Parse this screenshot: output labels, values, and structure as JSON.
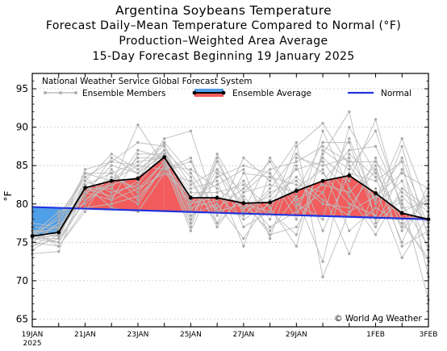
{
  "titles": {
    "line1": "Argentina Soybeans Temperature",
    "line2": "Forecast Daily–Mean Temperature Compared to Normal (°F)",
    "line3": "Production–Weighted Area Average",
    "line4": "15-Day Forecast Beginning 19 January 2025"
  },
  "legend": {
    "source": "National Weather Service Global Forecast System",
    "members": "Ensemble Members",
    "average": "Ensemble Average",
    "normal": "Normal"
  },
  "copyright": "© World Ag Weather",
  "colors": {
    "warm_fill": "#f25c5c",
    "cool_fill": "#4f9ee8",
    "normal_line": "#2233dd",
    "members": "#bdbdbd",
    "average": "#000000"
  },
  "chart_data": {
    "type": "line",
    "title": "Argentina Soybeans Temperature",
    "ylabel": "°F",
    "ylim": [
      64,
      97
    ],
    "yticks": [
      65,
      70,
      75,
      80,
      85,
      90,
      95
    ],
    "xlim": [
      0,
      15
    ],
    "grid": "dotted horizontal",
    "legend_position": "top",
    "xtick_labels": [
      {
        "x": 0,
        "label": "19JAN",
        "sub": "2025"
      },
      {
        "x": 2,
        "label": "21JAN"
      },
      {
        "x": 4,
        "label": "23JAN"
      },
      {
        "x": 6,
        "label": "25JAN"
      },
      {
        "x": 8,
        "label": "27JAN"
      },
      {
        "x": 10,
        "label": "29JAN"
      },
      {
        "x": 13,
        "label": "1FEB"
      },
      {
        "x": 15,
        "label": "3FEB"
      }
    ],
    "series": [
      {
        "name": "Ensemble Average",
        "x": [
          0,
          1,
          2,
          3,
          4,
          5,
          6,
          7,
          8,
          9,
          10,
          11,
          12,
          13,
          14,
          15
        ],
        "values": [
          75.8,
          76.3,
          82.1,
          83.0,
          83.3,
          86.1,
          80.8,
          80.8,
          80.1,
          80.2,
          81.7,
          83.0,
          83.7,
          81.4,
          78.8,
          78.0
        ]
      },
      {
        "name": "Normal",
        "x": [
          0,
          15
        ],
        "values": [
          79.6,
          78.0
        ]
      }
    ],
    "ensemble_members": [
      [
        75.5,
        76.0,
        84.5,
        85.5,
        88.0,
        87.5,
        82.5,
        84.5,
        81.5,
        84.5,
        85.5,
        87.5,
        85.5,
        85.5,
        81.5,
        79.0
      ],
      [
        75.0,
        74.5,
        79.5,
        80.0,
        81.0,
        84.5,
        86.0,
        77.5,
        81.0,
        77.0,
        79.0,
        81.5,
        88.5,
        80.0,
        83.0,
        74.0
      ],
      [
        76.0,
        77.0,
        83.0,
        86.5,
        84.5,
        87.0,
        78.5,
        80.0,
        75.5,
        80.5,
        83.5,
        80.5,
        78.5,
        86.0,
        76.5,
        81.0
      ],
      [
        75.5,
        75.0,
        81.5,
        82.5,
        90.3,
        85.0,
        80.0,
        83.5,
        85.0,
        84.0,
        78.0,
        89.5,
        82.0,
        77.0,
        84.5,
        76.0
      ],
      [
        76.5,
        76.5,
        82.0,
        81.0,
        83.0,
        88.5,
        89.5,
        79.0,
        80.0,
        76.5,
        81.0,
        72.5,
        86.5,
        83.5,
        75.0,
        82.5
      ],
      [
        74.5,
        75.5,
        80.5,
        83.5,
        82.0,
        85.5,
        77.0,
        86.0,
        78.5,
        82.0,
        86.5,
        84.0,
        80.0,
        78.5,
        87.5,
        75.5
      ],
      [
        76.0,
        78.0,
        84.0,
        84.0,
        85.5,
        86.0,
        81.5,
        81.5,
        82.5,
        79.5,
        74.5,
        87.0,
        84.5,
        89.5,
        79.5,
        80.0
      ],
      [
        73.5,
        73.8,
        82.5,
        79.5,
        79.0,
        84.0,
        83.0,
        77.5,
        84.0,
        83.5,
        82.5,
        81.5,
        73.5,
        82.0,
        73.0,
        78.5
      ],
      [
        77.0,
        76.8,
        81.0,
        86.0,
        84.0,
        87.8,
        79.0,
        84.5,
        77.0,
        79.0,
        87.5,
        90.5,
        85.0,
        80.5,
        86.0,
        77.0
      ],
      [
        75.0,
        77.5,
        83.5,
        80.5,
        86.5,
        86.5,
        80.5,
        79.5,
        82.0,
        85.5,
        80.0,
        78.0,
        90.0,
        84.0,
        78.0,
        72.5
      ],
      [
        76.5,
        74.5,
        79.0,
        84.5,
        80.5,
        85.0,
        84.5,
        82.0,
        79.5,
        81.0,
        84.5,
        85.5,
        81.0,
        76.0,
        82.0,
        79.5
      ],
      [
        74.0,
        76.0,
        82.0,
        82.0,
        87.0,
        86.0,
        77.5,
        86.5,
        80.5,
        76.0,
        77.0,
        83.0,
        87.0,
        87.5,
        80.0,
        74.5
      ],
      [
        76.0,
        79.0,
        80.0,
        83.0,
        85.0,
        84.5,
        85.5,
        78.5,
        86.0,
        83.0,
        88.0,
        70.5,
        79.0,
        81.0,
        84.0,
        82.0
      ],
      [
        75.5,
        75.5,
        83.0,
        81.5,
        82.5,
        87.0,
        80.0,
        81.0,
        78.0,
        80.0,
        82.0,
        84.5,
        76.5,
        79.5,
        77.5,
        73.0
      ],
      [
        77.5,
        77.0,
        81.5,
        85.0,
        84.0,
        86.5,
        82.0,
        83.0,
        74.5,
        84.0,
        79.5,
        86.0,
        83.0,
        91.0,
        79.0,
        80.5
      ],
      [
        74.5,
        76.5,
        82.5,
        84.0,
        81.5,
        85.5,
        79.5,
        80.5,
        83.0,
        78.0,
        85.0,
        76.5,
        84.0,
        83.0,
        85.5,
        70.5
      ],
      [
        76.0,
        75.0,
        80.5,
        82.5,
        83.5,
        87.0,
        83.5,
        77.0,
        81.5,
        82.5,
        81.5,
        88.0,
        88.0,
        78.0,
        81.0,
        77.5
      ],
      [
        75.0,
        77.5,
        84.0,
        83.0,
        86.0,
        86.0,
        78.0,
        85.5,
        79.0,
        86.0,
        80.5,
        82.5,
        81.5,
        85.0,
        74.5,
        76.5
      ],
      [
        76.5,
        76.0,
        81.5,
        80.5,
        82.0,
        84.0,
        81.0,
        82.5,
        84.5,
        75.5,
        86.0,
        85.0,
        86.0,
        80.5,
        88.5,
        79.5
      ],
      [
        75.5,
        78.5,
        83.5,
        85.5,
        85.0,
        88.0,
        84.0,
        79.0,
        78.5,
        81.5,
        83.0,
        80.0,
        79.5,
        84.5,
        77.0,
        81.5
      ],
      [
        75.8,
        75.8,
        82.0,
        82.0,
        80.0,
        85.0,
        76.5,
        84.0,
        80.0,
        79.0,
        76.0,
        86.5,
        92.0,
        77.5,
        80.5,
        67.5
      ]
    ]
  }
}
